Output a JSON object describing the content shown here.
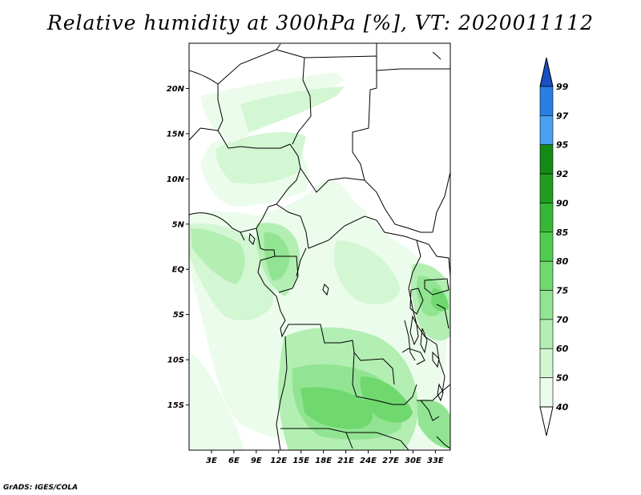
{
  "title": "Relative humidity at 300hPa [%], VT: 2020011112",
  "credit": "GrADS: IGES/COLA",
  "map": {
    "lat_labels": [
      "20N",
      "15N",
      "10N",
      "5N",
      "EQ",
      "5S",
      "10S",
      "15S"
    ],
    "lon_labels": [
      "3E",
      "6E",
      "9E",
      "12E",
      "15E",
      "18E",
      "21E",
      "24E",
      "27E",
      "30E",
      "33E"
    ],
    "lat_values": [
      20,
      15,
      10,
      5,
      0,
      -5,
      -10,
      -15
    ],
    "lon_values": [
      3,
      6,
      9,
      12,
      15,
      18,
      21,
      24,
      27,
      30,
      33
    ],
    "lon_range": [
      0,
      35
    ],
    "lat_range": [
      -20,
      25
    ]
  },
  "colorbar": {
    "levels": [
      "99",
      "97",
      "95",
      "92",
      "90",
      "85",
      "80",
      "75",
      "70",
      "60",
      "50",
      "40"
    ],
    "colors": [
      "#1e5fd6",
      "#2a7fe6",
      "#4aa0f0",
      "#138a13",
      "#1f9e1f",
      "#36b836",
      "#50cc50",
      "#6fd86f",
      "#92e492",
      "#b3eeb3",
      "#d3f6d3",
      "#ecfcec",
      "#ffffff"
    ],
    "top_arrow_color": "#1a4fc4",
    "bottom_arrow_color": "#ffffff"
  }
}
